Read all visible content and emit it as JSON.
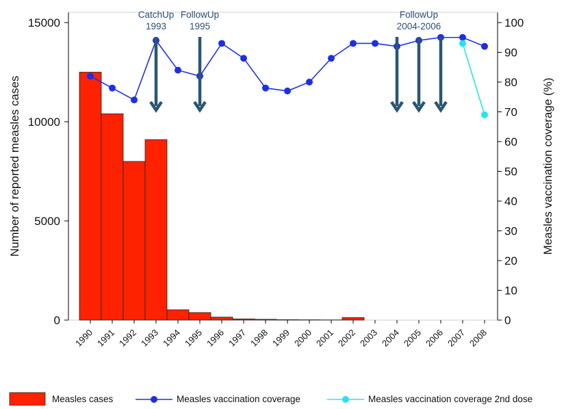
{
  "chart_data": {
    "type": "bar+line",
    "categories": [
      "1990",
      "1991",
      "1992",
      "1993",
      "1994",
      "1995",
      "1996",
      "1997",
      "1998",
      "1999",
      "2000",
      "2001",
      "2002",
      "2003",
      "2004",
      "2005",
      "2006",
      "2007",
      "2008"
    ],
    "series": [
      {
        "name": "Measles cases",
        "type": "bar",
        "axis": "left",
        "color": "#ff2200",
        "values": [
          12500,
          10400,
          8000,
          9100,
          520,
          380,
          150,
          60,
          40,
          20,
          15,
          10,
          130,
          null,
          null,
          null,
          null,
          null,
          null
        ]
      },
      {
        "name": "Measles vaccination coverage",
        "type": "line",
        "axis": "right",
        "color": "#1f2ee6",
        "values": [
          82,
          78,
          74,
          94,
          84,
          82,
          93,
          88,
          78,
          77,
          80,
          88,
          93,
          93,
          92,
          94,
          95,
          95,
          92
        ]
      },
      {
        "name": "Measles vaccination coverage 2nd dose",
        "type": "line",
        "axis": "right",
        "color": "#22e5ef",
        "values": [
          null,
          null,
          null,
          null,
          null,
          null,
          null,
          null,
          null,
          null,
          null,
          null,
          null,
          null,
          null,
          null,
          null,
          93,
          69
        ]
      }
    ],
    "ylabel": "Number of reported measles cases",
    "y2label": "Measles vaccination coverage (%)",
    "ylim": [
      0,
      15000
    ],
    "yticks": [
      "0",
      "5000",
      "10000",
      "15000"
    ],
    "y2lim": [
      0,
      100
    ],
    "y2ticks": [
      "0",
      "10",
      "20",
      "30",
      "40",
      "50",
      "60",
      "70",
      "80",
      "90",
      "100"
    ],
    "annotations": [
      {
        "lines": [
          "CatchUp",
          "1993"
        ],
        "arrow_years": [
          "1993"
        ]
      },
      {
        "lines": [
          "FollowUp",
          "1995"
        ],
        "arrow_years": [
          "1995"
        ]
      },
      {
        "lines": [
          "FollowUp",
          "2004-2006"
        ],
        "arrow_years": [
          "2004",
          "2005",
          "2006"
        ]
      }
    ],
    "legend_position": "bottom"
  },
  "colors": {
    "arrow": "#2a5674",
    "bar_border": "#222222"
  }
}
